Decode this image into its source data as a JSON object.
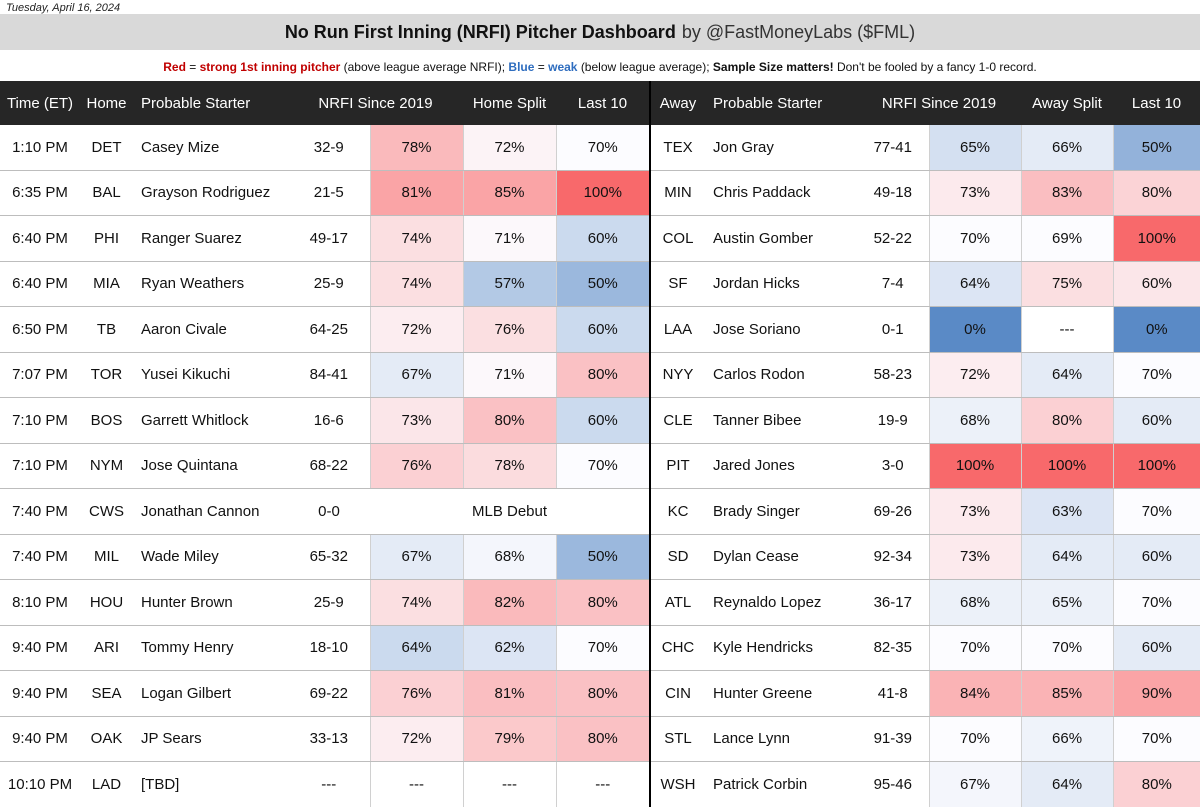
{
  "date": "Tuesday, April 16, 2024",
  "title": "No Run First Inning (NRFI) Pitcher Dashboard",
  "byline": "by @FastMoneyLabs ($FML)",
  "legend": {
    "red_word": "Red",
    "red_text": "strong 1st inning pitcher",
    "red_note": "(above league average NRFI);",
    "blue_word": "Blue",
    "blue_text": "weak",
    "blue_note": "(below league average);",
    "sample_bold": "Sample Size matters!",
    "sample_note": "Don't be fooled by a fancy 1-0 record."
  },
  "headers": [
    "Time (ET)",
    "Home",
    "Probable Starter",
    "NRFI Since 2019",
    "Home Split",
    "Last 10",
    "Away",
    "Probable Starter",
    "NRFI Since 2019",
    "Away Split",
    "Last 10"
  ],
  "colors": {
    "header_bg": "#262626",
    "banner_bg": "#d9d9d9",
    "scale_red": "#f8696b",
    "scale_blue": "#5a8ac6",
    "scale_mid": "#fcfcff"
  },
  "rows": [
    {
      "time": "1:10 PM",
      "home": "DET",
      "home_starter": "Casey Mize",
      "home_rec": "32-9",
      "home_pct": "78%",
      "home_split": "72%",
      "home_last10": "70%",
      "away": "TEX",
      "away_starter": "Jon Gray",
      "away_rec": "77-41",
      "away_pct": "65%",
      "away_split": "66%",
      "away_last10": "50%",
      "c": [
        0.45,
        0.06,
        0,
        -0.25,
        -0.15,
        -0.65
      ]
    },
    {
      "time": "6:35 PM",
      "home": "BAL",
      "home_starter": "Grayson Rodriguez",
      "home_rec": "21-5",
      "home_pct": "81%",
      "home_split": "85%",
      "home_last10": "100%",
      "away": "MIN",
      "away_starter": "Chris Paddack",
      "away_rec": "49-18",
      "away_pct": "73%",
      "away_split": "83%",
      "away_last10": "80%",
      "c": [
        0.6,
        0.6,
        1,
        0.12,
        0.42,
        0.28
      ]
    },
    {
      "time": "6:40 PM",
      "home": "PHI",
      "home_starter": "Ranger Suarez",
      "home_rec": "49-17",
      "home_pct": "74%",
      "home_split": "71%",
      "home_last10": "60%",
      "away": "COL",
      "away_starter": "Austin Gomber",
      "away_rec": "52-22",
      "away_pct": "70%",
      "away_split": "69%",
      "away_last10": "100%",
      "c": [
        0.2,
        0.03,
        -0.3,
        0,
        0,
        1
      ]
    },
    {
      "time": "6:40 PM",
      "home": "MIA",
      "home_starter": "Ryan Weathers",
      "home_rec": "25-9",
      "home_pct": "74%",
      "home_split": "57%",
      "home_last10": "50%",
      "away": "SF",
      "away_starter": "Jordan Hicks",
      "away_rec": "7-4",
      "away_pct": "64%",
      "away_split": "75%",
      "away_last10": "60%",
      "c": [
        0.2,
        -0.45,
        -0.6,
        -0.2,
        0.2,
        0.15
      ]
    },
    {
      "time": "6:50 PM",
      "home": "TB",
      "home_starter": "Aaron Civale",
      "home_rec": "64-25",
      "home_pct": "72%",
      "home_split": "76%",
      "home_last10": "60%",
      "away": "LAA",
      "away_starter": "Jose Soriano",
      "away_rec": "0-1",
      "away_pct": "0%",
      "away_split": "---",
      "away_last10": "0%",
      "c": [
        0.1,
        0.2,
        -0.3,
        -1,
        null,
        -1
      ]
    },
    {
      "time": "7:07 PM",
      "home": "TOR",
      "home_starter": "Yusei Kikuchi",
      "home_rec": "84-41",
      "home_pct": "67%",
      "home_split": "71%",
      "home_last10": "80%",
      "away": "NYY",
      "away_starter": "Carlos Rodon",
      "away_rec": "58-23",
      "away_pct": "72%",
      "away_split": "64%",
      "away_last10": "70%",
      "c": [
        -0.15,
        0.03,
        0.4,
        0.1,
        -0.15,
        0
      ]
    },
    {
      "time": "7:10 PM",
      "home": "BOS",
      "home_starter": "Garrett Whitlock",
      "home_rec": "16-6",
      "home_pct": "73%",
      "home_split": "80%",
      "home_last10": "60%",
      "away": "CLE",
      "away_starter": "Tanner Bibee",
      "away_rec": "19-9",
      "away_pct": "68%",
      "away_split": "80%",
      "away_last10": "60%",
      "c": [
        0.15,
        0.4,
        -0.3,
        -0.1,
        0.3,
        -0.15
      ]
    },
    {
      "time": "7:10 PM",
      "home": "NYM",
      "home_starter": "Jose Quintana",
      "home_rec": "68-22",
      "home_pct": "76%",
      "home_split": "78%",
      "home_last10": "70%",
      "away": "PIT",
      "away_starter": "Jared Jones",
      "away_rec": "3-0",
      "away_pct": "100%",
      "away_split": "100%",
      "away_last10": "100%",
      "c": [
        0.3,
        0.22,
        0,
        1,
        1,
        1
      ]
    },
    {
      "time": "7:40 PM",
      "home": "CWS",
      "home_starter": "Jonathan Cannon",
      "home_rec": "0-0",
      "home_pct": "",
      "home_split": "MLB Debut",
      "home_last10": "",
      "away": "KC",
      "away_starter": "Brady Singer",
      "away_rec": "69-26",
      "away_pct": "73%",
      "away_split": "63%",
      "away_last10": "70%",
      "c": [
        null,
        null,
        null,
        0.12,
        -0.2,
        0
      ]
    },
    {
      "time": "7:40 PM",
      "home": "MIL",
      "home_starter": "Wade Miley",
      "home_rec": "65-32",
      "home_pct": "67%",
      "home_split": "68%",
      "home_last10": "50%",
      "away": "SD",
      "away_starter": "Dylan Cease",
      "away_rec": "92-34",
      "away_pct": "73%",
      "away_split": "64%",
      "away_last10": "60%",
      "c": [
        -0.15,
        -0.05,
        -0.6,
        0.12,
        -0.15,
        -0.15
      ]
    },
    {
      "time": "8:10 PM",
      "home": "HOU",
      "home_starter": "Hunter Brown",
      "home_rec": "25-9",
      "home_pct": "74%",
      "home_split": "82%",
      "home_last10": "80%",
      "away": "ATL",
      "away_starter": "Reynaldo Lopez",
      "away_rec": "36-17",
      "away_pct": "68%",
      "away_split": "65%",
      "away_last10": "70%",
      "c": [
        0.2,
        0.45,
        0.4,
        -0.1,
        -0.1,
        0
      ]
    },
    {
      "time": "9:40 PM",
      "home": "ARI",
      "home_starter": "Tommy Henry",
      "home_rec": "18-10",
      "home_pct": "64%",
      "home_split": "62%",
      "home_last10": "70%",
      "away": "CHC",
      "away_starter": "Kyle Hendricks",
      "away_rec": "82-35",
      "away_pct": "70%",
      "away_split": "70%",
      "away_last10": "60%",
      "c": [
        -0.3,
        -0.2,
        0,
        0,
        0,
        -0.15
      ]
    },
    {
      "time": "9:40 PM",
      "home": "SEA",
      "home_starter": "Logan Gilbert",
      "home_rec": "69-22",
      "home_pct": "76%",
      "home_split": "81%",
      "home_last10": "80%",
      "away": "CIN",
      "away_starter": "Hunter Greene",
      "away_rec": "41-8",
      "away_pct": "84%",
      "away_split": "85%",
      "away_last10": "90%",
      "c": [
        0.3,
        0.42,
        0.4,
        0.5,
        0.5,
        0.6
      ]
    },
    {
      "time": "9:40 PM",
      "home": "OAK",
      "home_starter": "JP Sears",
      "home_rec": "33-13",
      "home_pct": "72%",
      "home_split": "79%",
      "home_last10": "80%",
      "away": "STL",
      "away_starter": "Lance Lynn",
      "away_rec": "91-39",
      "away_pct": "70%",
      "away_split": "66%",
      "away_last10": "70%",
      "c": [
        0.1,
        0.35,
        0.4,
        0,
        -0.08,
        0
      ]
    },
    {
      "time": "10:10 PM",
      "home": "LAD",
      "home_starter": "[TBD]",
      "home_rec": "---",
      "home_pct": "---",
      "home_split": "---",
      "home_last10": "---",
      "away": "WSH",
      "away_starter": "Patrick Corbin",
      "away_rec": "95-46",
      "away_pct": "67%",
      "away_split": "64%",
      "away_last10": "80%",
      "c": [
        null,
        null,
        null,
        -0.05,
        -0.15,
        0.3
      ]
    }
  ]
}
